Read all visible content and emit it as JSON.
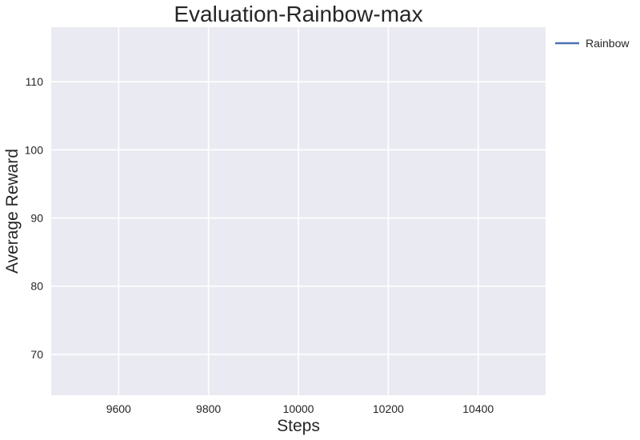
{
  "chart_data": {
    "type": "line",
    "title": "Evaluation-Rainbow-max",
    "xlabel": "Steps",
    "ylabel": "Average Reward",
    "xlim": [
      9450,
      10550
    ],
    "ylim": [
      64,
      118
    ],
    "xticks": [
      9600,
      9800,
      10000,
      10200,
      10400
    ],
    "yticks": [
      70,
      80,
      90,
      100,
      110
    ],
    "grid": true,
    "legend_position": "outside-top-right",
    "colors": {
      "background": "#EAEAF2",
      "grid": "#FFFFFF",
      "series": "#4C72B0"
    },
    "series": [
      {
        "name": "Rainbow",
        "x": [],
        "y": []
      }
    ]
  }
}
